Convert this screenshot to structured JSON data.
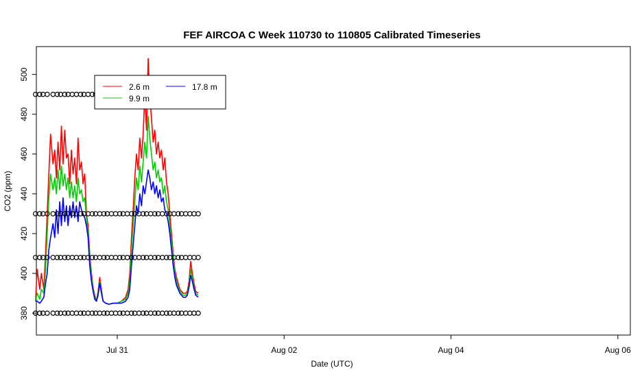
{
  "chart_data": {
    "type": "line",
    "title": "FEF AIRCOA C  Week 110730 to 110805  Calibrated Timeseries",
    "xlabel": "Date (UTC)",
    "ylabel": "CO2 (ppm)",
    "xlim": [
      -0.97,
      6.15
    ],
    "ylim": [
      369,
      514
    ],
    "x_tick_values": [
      0,
      2,
      4,
      6
    ],
    "x_tick_labels": [
      "Jul 31",
      "Aug 02",
      "Aug 04",
      "Aug 06"
    ],
    "y_ticks": [
      380,
      400,
      420,
      440,
      460,
      480,
      500
    ],
    "grid": false,
    "legend_position": "top-left",
    "legend": [
      "2.6 m",
      "9.9 m",
      "17.8 m"
    ],
    "series": [
      {
        "name": "2.6 m",
        "color": "#ff0000",
        "points": [
          [
            -0.98,
            386
          ],
          [
            -0.96,
            402
          ],
          [
            -0.93,
            392
          ],
          [
            -0.91,
            400
          ],
          [
            -0.88,
            392
          ],
          [
            -0.86,
            410
          ],
          [
            -0.84,
            430
          ],
          [
            -0.82,
            450
          ],
          [
            -0.8,
            470
          ],
          [
            -0.77,
            455
          ],
          [
            -0.75,
            462
          ],
          [
            -0.73,
            448
          ],
          [
            -0.71,
            466
          ],
          [
            -0.69,
            452
          ],
          [
            -0.67,
            474
          ],
          [
            -0.65,
            455
          ],
          [
            -0.63,
            472
          ],
          [
            -0.61,
            458
          ],
          [
            -0.59,
            460
          ],
          [
            -0.57,
            445
          ],
          [
            -0.55,
            462
          ],
          [
            -0.53,
            450
          ],
          [
            -0.51,
            458
          ],
          [
            -0.49,
            445
          ],
          [
            -0.47,
            468
          ],
          [
            -0.45,
            452
          ],
          [
            -0.43,
            456
          ],
          [
            -0.41,
            445
          ],
          [
            -0.39,
            450
          ],
          [
            -0.37,
            430
          ],
          [
            -0.35,
            424
          ],
          [
            -0.33,
            410
          ],
          [
            -0.31,
            400
          ],
          [
            -0.29,
            393
          ],
          [
            -0.27,
            389
          ],
          [
            -0.25,
            386
          ],
          [
            -0.23,
            391
          ],
          [
            -0.21,
            398
          ],
          [
            -0.19,
            392
          ],
          [
            -0.17,
            386
          ],
          [
            -0.14,
            385
          ],
          [
            -0.1,
            384.5
          ],
          [
            -0.05,
            385
          ],
          [
            0.0,
            385
          ],
          [
            0.05,
            386
          ],
          [
            0.1,
            388
          ],
          [
            0.13,
            392
          ],
          [
            0.15,
            400
          ],
          [
            0.17,
            418
          ],
          [
            0.19,
            432
          ],
          [
            0.21,
            448
          ],
          [
            0.23,
            460
          ],
          [
            0.25,
            452
          ],
          [
            0.27,
            468
          ],
          [
            0.29,
            458
          ],
          [
            0.31,
            470
          ],
          [
            0.33,
            490
          ],
          [
            0.35,
            472
          ],
          [
            0.37,
            508
          ],
          [
            0.39,
            488
          ],
          [
            0.41,
            478
          ],
          [
            0.43,
            466
          ],
          [
            0.45,
            472
          ],
          [
            0.47,
            460
          ],
          [
            0.49,
            466
          ],
          [
            0.51,
            458
          ],
          [
            0.53,
            462
          ],
          [
            0.55,
            452
          ],
          [
            0.57,
            458
          ],
          [
            0.59,
            446
          ],
          [
            0.61,
            440
          ],
          [
            0.63,
            430
          ],
          [
            0.65,
            420
          ],
          [
            0.67,
            410
          ],
          [
            0.69,
            402
          ],
          [
            0.71,
            398
          ],
          [
            0.73,
            395
          ],
          [
            0.75,
            392
          ],
          [
            0.77,
            391
          ],
          [
            0.79,
            390
          ],
          [
            0.82,
            390
          ],
          [
            0.84,
            391
          ],
          [
            0.86,
            396
          ],
          [
            0.88,
            406
          ],
          [
            0.9,
            400
          ],
          [
            0.92,
            395
          ],
          [
            0.94,
            391
          ],
          [
            0.97,
            390
          ]
        ]
      },
      {
        "name": "9.9 m",
        "color": "#00cc00",
        "points": [
          [
            -0.98,
            386
          ],
          [
            -0.96,
            390
          ],
          [
            -0.93,
            387
          ],
          [
            -0.91,
            392
          ],
          [
            -0.88,
            390
          ],
          [
            -0.86,
            402
          ],
          [
            -0.84,
            420
          ],
          [
            -0.82,
            438
          ],
          [
            -0.8,
            450
          ],
          [
            -0.77,
            442
          ],
          [
            -0.75,
            448
          ],
          [
            -0.73,
            440
          ],
          [
            -0.71,
            452
          ],
          [
            -0.69,
            442
          ],
          [
            -0.67,
            454
          ],
          [
            -0.65,
            444
          ],
          [
            -0.63,
            450
          ],
          [
            -0.61,
            442
          ],
          [
            -0.59,
            448
          ],
          [
            -0.57,
            438
          ],
          [
            -0.55,
            446
          ],
          [
            -0.53,
            438
          ],
          [
            -0.51,
            444
          ],
          [
            -0.49,
            436
          ],
          [
            -0.47,
            448
          ],
          [
            -0.45,
            440
          ],
          [
            -0.43,
            442
          ],
          [
            -0.41,
            436
          ],
          [
            -0.39,
            438
          ],
          [
            -0.37,
            428
          ],
          [
            -0.35,
            420
          ],
          [
            -0.33,
            408
          ],
          [
            -0.31,
            398
          ],
          [
            -0.29,
            392
          ],
          [
            -0.27,
            388
          ],
          [
            -0.25,
            386
          ],
          [
            -0.23,
            390
          ],
          [
            -0.21,
            396
          ],
          [
            -0.19,
            391
          ],
          [
            -0.17,
            386
          ],
          [
            -0.14,
            385
          ],
          [
            -0.1,
            384.5
          ],
          [
            -0.05,
            385
          ],
          [
            0.0,
            385
          ],
          [
            0.05,
            386
          ],
          [
            0.1,
            387
          ],
          [
            0.13,
            390
          ],
          [
            0.15,
            396
          ],
          [
            0.17,
            412
          ],
          [
            0.19,
            424
          ],
          [
            0.21,
            436
          ],
          [
            0.23,
            448
          ],
          [
            0.25,
            442
          ],
          [
            0.27,
            454
          ],
          [
            0.29,
            446
          ],
          [
            0.31,
            456
          ],
          [
            0.33,
            466
          ],
          [
            0.35,
            458
          ],
          [
            0.37,
            479
          ],
          [
            0.39,
            468
          ],
          [
            0.41,
            460
          ],
          [
            0.43,
            452
          ],
          [
            0.45,
            456
          ],
          [
            0.47,
            448
          ],
          [
            0.49,
            452
          ],
          [
            0.51,
            446
          ],
          [
            0.53,
            448
          ],
          [
            0.55,
            440
          ],
          [
            0.57,
            444
          ],
          [
            0.59,
            436
          ],
          [
            0.61,
            432
          ],
          [
            0.63,
            424
          ],
          [
            0.65,
            416
          ],
          [
            0.67,
            408
          ],
          [
            0.69,
            400
          ],
          [
            0.71,
            396
          ],
          [
            0.73,
            393
          ],
          [
            0.75,
            391
          ],
          [
            0.77,
            390
          ],
          [
            0.79,
            389
          ],
          [
            0.82,
            389
          ],
          [
            0.84,
            390
          ],
          [
            0.86,
            394
          ],
          [
            0.88,
            402
          ],
          [
            0.9,
            398
          ],
          [
            0.92,
            393
          ],
          [
            0.94,
            390
          ],
          [
            0.97,
            389
          ]
        ]
      },
      {
        "name": "17.8 m",
        "color": "#0000ff",
        "points": [
          [
            -0.98,
            386
          ],
          [
            -0.96,
            386
          ],
          [
            -0.93,
            385
          ],
          [
            -0.91,
            386
          ],
          [
            -0.88,
            388
          ],
          [
            -0.86,
            395
          ],
          [
            -0.84,
            400
          ],
          [
            -0.82,
            412
          ],
          [
            -0.8,
            418
          ],
          [
            -0.77,
            425
          ],
          [
            -0.75,
            418
          ],
          [
            -0.73,
            432
          ],
          [
            -0.71,
            420
          ],
          [
            -0.69,
            436
          ],
          [
            -0.67,
            424
          ],
          [
            -0.65,
            438
          ],
          [
            -0.63,
            426
          ],
          [
            -0.61,
            434
          ],
          [
            -0.59,
            424
          ],
          [
            -0.57,
            434
          ],
          [
            -0.55,
            428
          ],
          [
            -0.53,
            436
          ],
          [
            -0.51,
            428
          ],
          [
            -0.49,
            434
          ],
          [
            -0.47,
            426
          ],
          [
            -0.45,
            436
          ],
          [
            -0.43,
            432
          ],
          [
            -0.41,
            430
          ],
          [
            -0.39,
            428
          ],
          [
            -0.37,
            424
          ],
          [
            -0.35,
            418
          ],
          [
            -0.33,
            404
          ],
          [
            -0.31,
            396
          ],
          [
            -0.29,
            391
          ],
          [
            -0.27,
            387
          ],
          [
            -0.25,
            386
          ],
          [
            -0.23,
            389
          ],
          [
            -0.21,
            395
          ],
          [
            -0.19,
            390
          ],
          [
            -0.17,
            386
          ],
          [
            -0.14,
            385
          ],
          [
            -0.1,
            384.5
          ],
          [
            -0.05,
            385
          ],
          [
            0.0,
            385
          ],
          [
            0.05,
            385
          ],
          [
            0.1,
            386
          ],
          [
            0.13,
            388
          ],
          [
            0.15,
            392
          ],
          [
            0.17,
            404
          ],
          [
            0.19,
            414
          ],
          [
            0.21,
            424
          ],
          [
            0.23,
            434
          ],
          [
            0.25,
            430
          ],
          [
            0.27,
            440
          ],
          [
            0.29,
            434
          ],
          [
            0.31,
            444
          ],
          [
            0.33,
            440
          ],
          [
            0.35,
            446
          ],
          [
            0.37,
            452
          ],
          [
            0.39,
            448
          ],
          [
            0.41,
            442
          ],
          [
            0.43,
            446
          ],
          [
            0.45,
            440
          ],
          [
            0.47,
            444
          ],
          [
            0.49,
            438
          ],
          [
            0.51,
            442
          ],
          [
            0.53,
            436
          ],
          [
            0.55,
            438
          ],
          [
            0.57,
            432
          ],
          [
            0.59,
            430
          ],
          [
            0.61,
            426
          ],
          [
            0.63,
            420
          ],
          [
            0.65,
            412
          ],
          [
            0.67,
            404
          ],
          [
            0.69,
            398
          ],
          [
            0.71,
            394
          ],
          [
            0.73,
            392
          ],
          [
            0.75,
            390
          ],
          [
            0.77,
            389
          ],
          [
            0.79,
            388
          ],
          [
            0.82,
            388
          ],
          [
            0.84,
            389
          ],
          [
            0.86,
            393
          ],
          [
            0.88,
            399
          ],
          [
            0.9,
            396
          ],
          [
            0.92,
            392
          ],
          [
            0.94,
            389
          ],
          [
            0.97,
            388
          ]
        ]
      }
    ],
    "marker_series": {
      "symbol": "open circle",
      "levels": [
        380,
        408,
        430,
        490
      ],
      "x": [
        -0.98,
        -0.93,
        -0.89,
        -0.84,
        -0.77,
        -0.72,
        -0.68,
        -0.63,
        -0.59,
        -0.54,
        -0.49,
        -0.44,
        -0.4,
        -0.35,
        -0.3,
        -0.26,
        -0.21,
        -0.16,
        -0.12,
        -0.07,
        -0.02,
        0.03,
        0.07,
        0.12,
        0.17,
        0.21,
        0.26,
        0.31,
        0.35,
        0.4,
        0.45,
        0.49,
        0.54,
        0.59,
        0.63,
        0.68,
        0.73,
        0.77,
        0.82,
        0.87,
        0.92,
        0.97
      ]
    }
  }
}
